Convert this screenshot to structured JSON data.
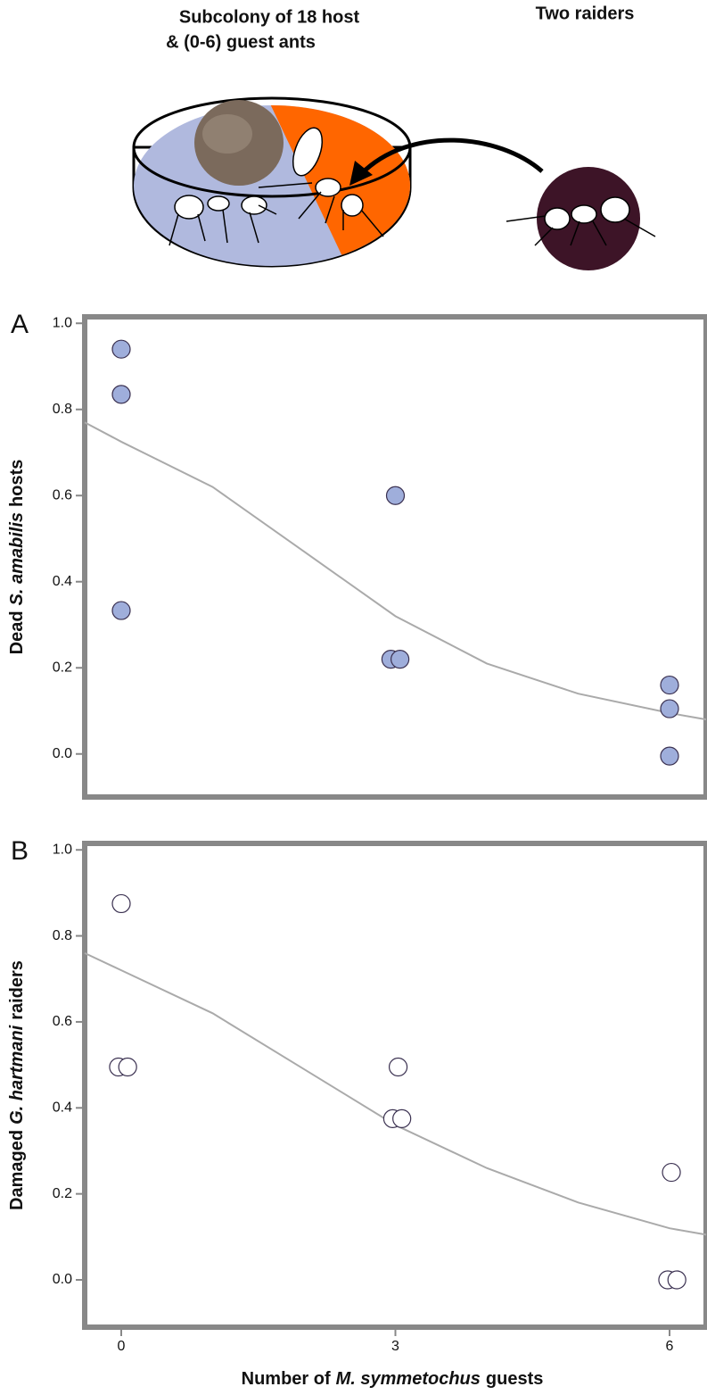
{
  "illustration": {
    "host_label": [
      "Subcolony of 18 host",
      "& (0-6) guest ants"
    ],
    "raider_label": "Two raiders"
  },
  "chart_data": [
    {
      "type": "scatter",
      "panel": "A",
      "ylabel": [
        "Dead",
        "S. amabilis",
        "hosts"
      ],
      "x": [
        0,
        0,
        0,
        3,
        2.95,
        3.05,
        6,
        6,
        6
      ],
      "values": [
        0.94,
        0.835,
        0.333,
        0.6,
        0.22,
        0.22,
        0.16,
        0.105,
        -0.005
      ],
      "color": "#9faedb",
      "fit": {
        "x": [
          -0.4,
          0,
          1,
          2,
          3,
          4,
          5,
          6,
          6.4
        ],
        "values": [
          0.77,
          0.725,
          0.62,
          0.47,
          0.32,
          0.21,
          0.14,
          0.095,
          0.08
        ],
        "color": "#aaaaaa"
      },
      "xlim": [
        -0.4,
        6.4
      ],
      "ylim": [
        -0.1,
        1.015
      ],
      "yticks": [
        {
          "value": 0,
          "label": "0.0"
        },
        0.2,
        0.4,
        0.6,
        0.8,
        {
          "value": 1,
          "label": "1.0"
        }
      ]
    },
    {
      "type": "scatter",
      "panel": "B",
      "ylabel": [
        "Damaged",
        "G. hartmani",
        "raiders"
      ],
      "xlabel": [
        "Number of",
        "M. symmetochus",
        "guests"
      ],
      "x": [
        0,
        -0.03,
        0.07,
        3.03,
        2.97,
        3.07,
        6.02,
        5.98,
        6.08
      ],
      "values": [
        0.875,
        0.495,
        0.495,
        0.495,
        0.375,
        0.375,
        0.25,
        0,
        0
      ],
      "color": "#ffffff",
      "fit": {
        "x": [
          -0.4,
          0,
          1,
          2,
          3,
          4,
          5,
          6,
          6.4
        ],
        "values": [
          0.76,
          0.72,
          0.62,
          0.49,
          0.36,
          0.26,
          0.18,
          0.12,
          0.105
        ],
        "color": "#aaaaaa"
      },
      "xlim": [
        -0.4,
        6.4
      ],
      "ylim": [
        -0.11,
        1.015
      ],
      "xticks": [
        0,
        3,
        6
      ],
      "yticks": [
        {
          "value": 0,
          "label": "0.0"
        },
        0.2,
        0.4,
        0.6,
        0.8,
        {
          "value": 1,
          "label": "1.0"
        }
      ]
    }
  ]
}
